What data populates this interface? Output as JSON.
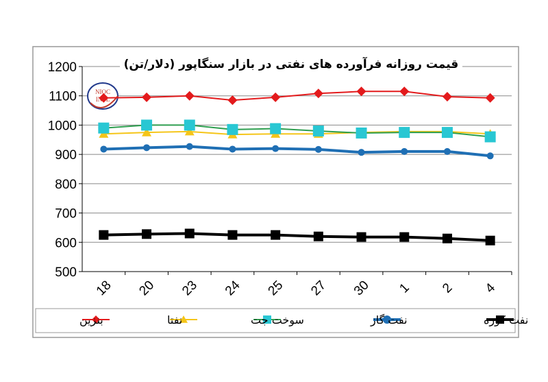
{
  "chart_data": {
    "type": "line",
    "title": "قیمت روزانه فرآورده های نفتی در بازار سنگاپور (دلار/تن)",
    "categories": [
      "18",
      "20",
      "23",
      "24",
      "25",
      "27",
      "30",
      "1",
      "2",
      "4"
    ],
    "ylim": [
      500,
      1200
    ],
    "yticks": [
      500,
      600,
      700,
      800,
      900,
      1000,
      1100,
      1200
    ],
    "grid": true,
    "legend": "bottom",
    "series": [
      {
        "name": "بنزین",
        "color": "#e31a1c",
        "marker": "diamond",
        "values": [
          1093,
          1095,
          1100,
          1085,
          1095,
          1108,
          1115,
          1115,
          1097,
          1093
        ]
      },
      {
        "name": "نفتا",
        "color": "#f5c518",
        "marker": "triangle",
        "values": [
          970,
          975,
          978,
          968,
          970,
          970,
          975,
          978,
          978,
          970
        ]
      },
      {
        "name": "سوخت جت",
        "color": "#2e9e4f",
        "marker_color": "#29c7d3",
        "marker": "square",
        "values": [
          990,
          1000,
          1000,
          985,
          988,
          980,
          973,
          975,
          975,
          960
        ]
      },
      {
        "name": "نفت گاز",
        "color": "#1f6fb4",
        "marker": "circle",
        "values": [
          918,
          923,
          927,
          918,
          920,
          917,
          907,
          910,
          910,
          895
        ]
      },
      {
        "name": "نفت کوره",
        "color": "#000000",
        "marker": "square",
        "values": [
          625,
          628,
          630,
          625,
          625,
          620,
          618,
          618,
          613,
          606
        ]
      }
    ]
  },
  "logo_text": "NIOC INTL"
}
